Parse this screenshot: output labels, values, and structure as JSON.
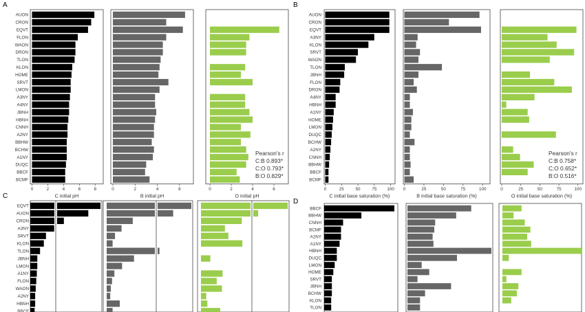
{
  "colors": {
    "C": "#000000",
    "B": "#666666",
    "O": "#9acd4c"
  },
  "panel_labels": [
    "A",
    "B",
    "C",
    "D"
  ],
  "chart_data": [
    {
      "type": "bar",
      "panel": "A",
      "orientation": "horizontal",
      "categories": [
        "AUON",
        "CRON",
        "EQVT",
        "FLON",
        "WAON",
        "DRON",
        "TLON",
        "KLON",
        "HOME",
        "SRVT",
        "LMON",
        "A3NY",
        "A4NY",
        "JBNH",
        "HBNH",
        "CNNH",
        "A2NY",
        "BBHW",
        "BCHW",
        "A1NY",
        "DUQC",
        "BBCF",
        "BCMF"
      ],
      "series": [
        {
          "name": "C",
          "xlabel": "C initial pH",
          "ticks": [
            0,
            2,
            4,
            6,
            8
          ],
          "xlim": [
            0,
            8.5
          ],
          "values": [
            7.9,
            7.5,
            7.1,
            5.8,
            5.5,
            5.5,
            5.4,
            5.1,
            5.0,
            4.9,
            4.9,
            4.8,
            4.7,
            4.7,
            4.6,
            4.5,
            4.5,
            4.4,
            4.4,
            4.4,
            4.3,
            4.2,
            4.2
          ]
        },
        {
          "name": "B",
          "xlabel": "B initial pH",
          "ticks": [
            0,
            2,
            4,
            6
          ],
          "xlim": [
            0,
            7.0
          ],
          "values": [
            6.5,
            4.8,
            6.3,
            4.8,
            4.5,
            4.5,
            4.3,
            4.2,
            4.1,
            5.0,
            4.2,
            3.8,
            3.8,
            3.9,
            3.8,
            3.7,
            3.7,
            3.5,
            3.7,
            3.6,
            3.0,
            2.9,
            3.3
          ]
        },
        {
          "name": "O",
          "xlabel": "O initial pH",
          "ticks": [
            0,
            2,
            4,
            6
          ],
          "xlim": [
            0,
            6.9
          ],
          "values": [
            null,
            null,
            6.5,
            3.7,
            3.4,
            3.4,
            null,
            3.3,
            2.9,
            4.0,
            null,
            3.3,
            3.3,
            3.7,
            4.0,
            2.9,
            3.8,
            2.9,
            3.4,
            3.6,
            3.4,
            2.5,
            2.8
          ]
        }
      ],
      "annotation": [
        "Pearson's r",
        "C:B 0.893*",
        "C:O 0.793*",
        "B:O 0.829*"
      ]
    },
    {
      "type": "bar",
      "panel": "B",
      "orientation": "horizontal",
      "categories": [
        "AUON",
        "CRON",
        "EQVT",
        "A3NY",
        "KLON",
        "SRVT",
        "WAON",
        "TLON",
        "JBNH",
        "FLON",
        "DRON",
        "A4NY",
        "HBNH",
        "A1NY",
        "HOME",
        "LMON",
        "DUQC",
        "BCHW",
        "A2NY",
        "CNNH",
        "BBHW",
        "BBCF",
        "BCMF"
      ],
      "series": [
        {
          "name": "C",
          "xlabel": "C initial base saturation (%)",
          "ticks": [
            0,
            25,
            50,
            75,
            100
          ],
          "xlim": [
            0,
            102
          ],
          "values": [
            98,
            98,
            98,
            75,
            66,
            50,
            47,
            30,
            29,
            23,
            22,
            16,
            16,
            13,
            12,
            11,
            10,
            9,
            8,
            7,
            6,
            5,
            5
          ]
        },
        {
          "name": "B",
          "xlabel": "B initial base saturation (%)",
          "ticks": [
            0,
            25,
            50,
            75,
            100
          ],
          "xlim": [
            0,
            102
          ],
          "values": [
            96,
            57,
            98,
            17,
            15,
            20,
            18,
            48,
            18,
            12,
            16,
            7,
            7,
            11,
            9,
            9,
            7,
            13,
            7,
            7,
            8,
            7,
            12
          ]
        },
        {
          "name": "O",
          "xlabel": "O initial base saturation (%)",
          "ticks": [
            0,
            25,
            50,
            75,
            100
          ],
          "xlim": [
            0,
            102
          ],
          "values": [
            null,
            null,
            98,
            60,
            72,
            95,
            63,
            null,
            37,
            69,
            92,
            43,
            6,
            34,
            36,
            null,
            71,
            null,
            15,
            24,
            42,
            34,
            null
          ]
        }
      ],
      "annotation": [
        "Pearson's r",
        "C:B 0.758*",
        "C:O 0.652*",
        "B:O 0.516*"
      ]
    },
    {
      "type": "bar",
      "panel": "C",
      "orientation": "horizontal",
      "categories": [
        "EQVT",
        "AUON",
        "CRON",
        "A3NY",
        "SRVT",
        "KLON",
        "TLON",
        "JBNH",
        "LMON",
        "A1NY",
        "FLON",
        "WAON",
        "A2NY",
        "HBNH",
        "BBCF"
      ],
      "series": [
        {
          "name": "C",
          "values": [
            13.2,
            10.7,
            6.2,
            4.4,
            2.9,
            2.5,
            1.8,
            1.3,
            1.3,
            1.2,
            1.1,
            1.0,
            0.9,
            0.9,
            0.8
          ]
        },
        {
          "name": "B",
          "values": [
            14.5,
            11.2,
            4.4,
            2.5,
            1.4,
            1.0,
            8.9,
            4.6,
            2.6,
            1.3,
            0.9,
            0.7,
            0.6,
            2.2,
            1.0
          ]
        },
        {
          "name": "O",
          "values": [
            15.1,
            9.8,
            7.0,
            4.1,
            4.7,
            7.1,
            null,
            1.6,
            null,
            3.7,
            2.7,
            3.6,
            0.9,
            1.1,
            3.3
          ]
        }
      ]
    },
    {
      "type": "bar",
      "panel": "D",
      "orientation": "horizontal",
      "categories": [
        "BBCF",
        "BBHW",
        "CNNH",
        "BCMF",
        "A2NY",
        "A1NY",
        "HBNH",
        "DUQC",
        "LMON",
        "HOME",
        "SRVT",
        "JBNH",
        "BCHW",
        "KLON",
        "TLON"
      ],
      "series": [
        {
          "name": "C",
          "values": [
            100,
            53,
            27,
            24,
            24,
            22,
            18,
            18,
            15,
            13,
            11,
            11,
            11,
            10,
            10
          ]
        },
        {
          "name": "B",
          "values": [
            76,
            58,
            33,
            32,
            30,
            31,
            100,
            59,
            17,
            26,
            12,
            52,
            21,
            15,
            15
          ]
        },
        {
          "name": "O",
          "values": [
            24,
            14,
            28,
            35,
            31,
            36,
            100,
            8,
            null,
            24,
            5,
            20,
            18,
            11,
            null
          ]
        }
      ]
    }
  ]
}
